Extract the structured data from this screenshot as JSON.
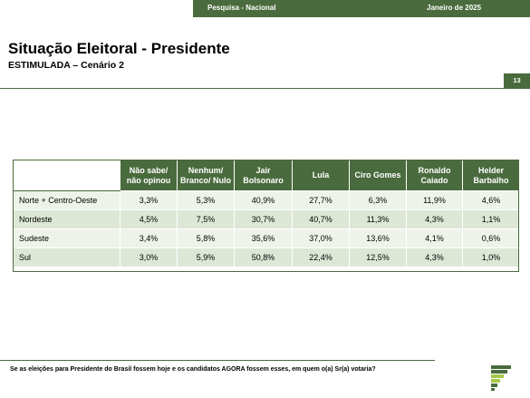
{
  "header": {
    "left": "Pesquisa - Nacional",
    "right": "Janeiro de 2025"
  },
  "title": "Situação Eleitoral - Presidente",
  "subtitle": "ESTIMULADA – Cenário 2",
  "page_number": "13",
  "table": {
    "columns": [
      [
        "Não sabe/",
        "não opinou"
      ],
      [
        "Nenhum/",
        "Branco/ Nulo"
      ],
      [
        "Jair",
        "Bolsonaro"
      ],
      [
        "Lula"
      ],
      [
        "Ciro Gomes"
      ],
      [
        "Ronaldo",
        "Caiado"
      ],
      [
        "Helder",
        "Barbalho"
      ]
    ],
    "rows": [
      {
        "region": "Norte + Centro-Oeste",
        "values": [
          "3,3%",
          "5,3%",
          "40,9%",
          "27,7%",
          "6,3%",
          "11,9%",
          "4,6%"
        ]
      },
      {
        "region": "Nordeste",
        "values": [
          "4,5%",
          "7,5%",
          "30,7%",
          "40,7%",
          "11,3%",
          "4,3%",
          "1,1%"
        ]
      },
      {
        "region": "Sudeste",
        "values": [
          "3,4%",
          "5,8%",
          "35,6%",
          "37,0%",
          "13,6%",
          "4,1%",
          "0,6%"
        ]
      },
      {
        "region": "Sul",
        "values": [
          "3,0%",
          "5,9%",
          "50,8%",
          "22,4%",
          "12,5%",
          "4,3%",
          "1,0%"
        ]
      }
    ]
  },
  "footnote": "Se as eleições para Presidente do Brasil fossem hoje e os candidatos AGORA fossem esses, em quem o(a) Sr(a) votaria?",
  "colors": {
    "brand_green": "#4a6b3d",
    "logo_light": "#a6c84a",
    "row_light": "#eef3ea",
    "row_dark": "#dde7d6"
  }
}
